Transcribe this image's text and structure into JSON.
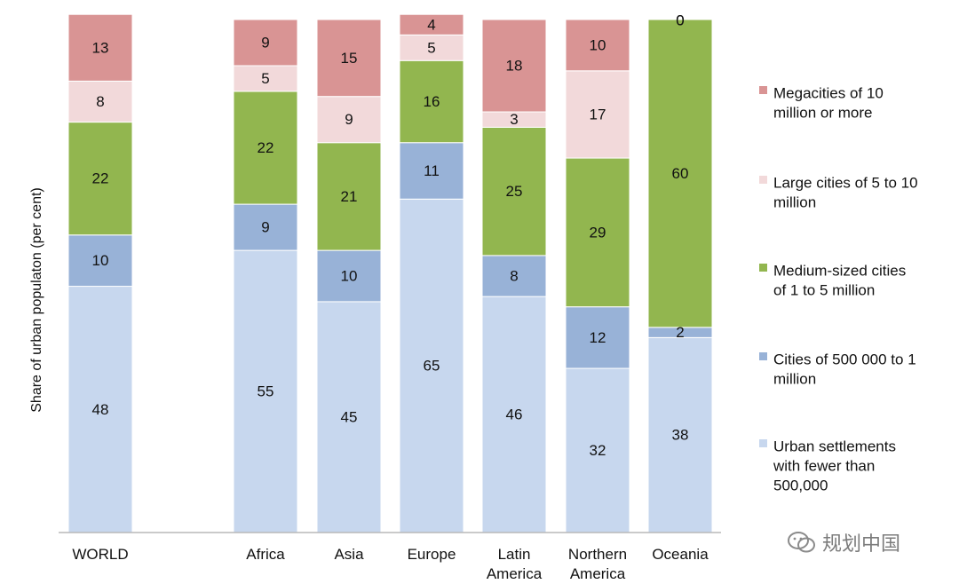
{
  "chart_data": {
    "type": "bar",
    "stacked": true,
    "ylabel": "Share of urban populaton (per cent)",
    "ylim": [
      0,
      100
    ],
    "grid": false,
    "legend_position": "right",
    "categories": [
      [
        "WORLD"
      ],
      [
        "Africa"
      ],
      [
        "Asia"
      ],
      [
        "Europe"
      ],
      [
        "Latin",
        "America"
      ],
      [
        "Northern",
        "America"
      ],
      [
        "Oceania"
      ]
    ],
    "series": [
      {
        "name": [
          "Urban settlements",
          "with fewer than",
          "500,000"
        ],
        "color": "#c7d7ee",
        "values": [
          48,
          55,
          45,
          65,
          46,
          32,
          38
        ]
      },
      {
        "name": [
          "Cities of 500 000 to 1",
          "million"
        ],
        "color": "#98b2d7",
        "values": [
          10,
          9,
          10,
          11,
          8,
          12,
          2
        ]
      },
      {
        "name": [
          "Medium-sized cities",
          "of 1 to 5 million"
        ],
        "color": "#92b64f",
        "values": [
          22,
          22,
          21,
          16,
          25,
          29,
          60
        ]
      },
      {
        "name": [
          "Large cities of 5 to 10",
          "million"
        ],
        "color": "#f2d9da",
        "values": [
          8,
          5,
          9,
          5,
          3,
          17,
          0
        ]
      },
      {
        "name": [
          "Megacities of 10",
          "million or more"
        ],
        "color": "#d99494",
        "values": [
          13,
          9,
          15,
          4,
          18,
          10,
          0
        ]
      }
    ]
  },
  "watermark": {
    "text": "规划中国",
    "icon": "wechat-icon"
  }
}
